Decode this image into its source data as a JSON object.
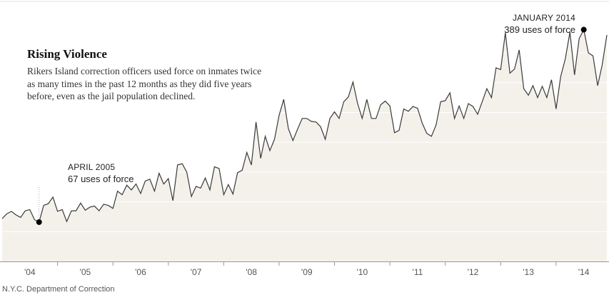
{
  "header": {
    "title": "Rising Violence",
    "subtitle": "Rikers Island correction officers used force on inmates twice as many times in the past 12 months as they did five years before, even as the jail population declined."
  },
  "annotations": {
    "low": {
      "date": "APRIL 2005",
      "value": "67 uses of force"
    },
    "high": {
      "date": "JANUARY 2014",
      "value": "389 uses of force"
    }
  },
  "source": "N.Y.C. Department of Correction",
  "colors": {
    "area_fill": "#f3f1ea",
    "line": "#3a3a3a",
    "gridline": "#ffffff",
    "marker": "#000000",
    "axis": "#999999"
  },
  "chart_data": {
    "type": "area",
    "title": "Rising Violence",
    "xlabel": "",
    "ylabel": "",
    "x_ticks": [
      "'04",
      "'05",
      "'06",
      "'07",
      "'08",
      "'09",
      "'10",
      "'11",
      "'12",
      "'13",
      "'14"
    ],
    "x_start": "2004-01",
    "x_end": "2014-06",
    "ylim": [
      0,
      410
    ],
    "grid": true,
    "series": [
      {
        "values": [
          72,
          80,
          84,
          78,
          74,
          85,
          87,
          70,
          66,
          94,
          97,
          108,
          84,
          87,
          67,
          85,
          85,
          98,
          86,
          91,
          93,
          85,
          96,
          94,
          89,
          118,
          112,
          128,
          120,
          130,
          114,
          135,
          138,
          118,
          148,
          130,
          139,
          102,
          162,
          164,
          150,
          109,
          126,
          123,
          140,
          120,
          159,
          156,
          112,
          129,
          113,
          149,
          153,
          183,
          162,
          234,
          173,
          210,
          186,
          205,
          245,
          272,
          223,
          203,
          222,
          240,
          240,
          235,
          234,
          226,
          205,
          240,
          251,
          240,
          268,
          276,
          301,
          265,
          240,
          272,
          240,
          240,
          263,
          269,
          261,
          216,
          220,
          256,
          252,
          260,
          257,
          232,
          215,
          210,
          229,
          268,
          270,
          283,
          240,
          261,
          240,
          265,
          260,
          247,
          268,
          290,
          275,
          325,
          322,
          384,
          316,
          323,
          355,
          290,
          279,
          295,
          275,
          294,
          275,
          305,
          256,
          310,
          340,
          385,
          313,
          374,
          389,
          350,
          345,
          295,
          330,
          380
        ]
      }
    ],
    "highlights": [
      {
        "label": "APRIL 2005",
        "value": 67
      },
      {
        "label": "JANUARY 2014",
        "value": 389
      }
    ]
  }
}
